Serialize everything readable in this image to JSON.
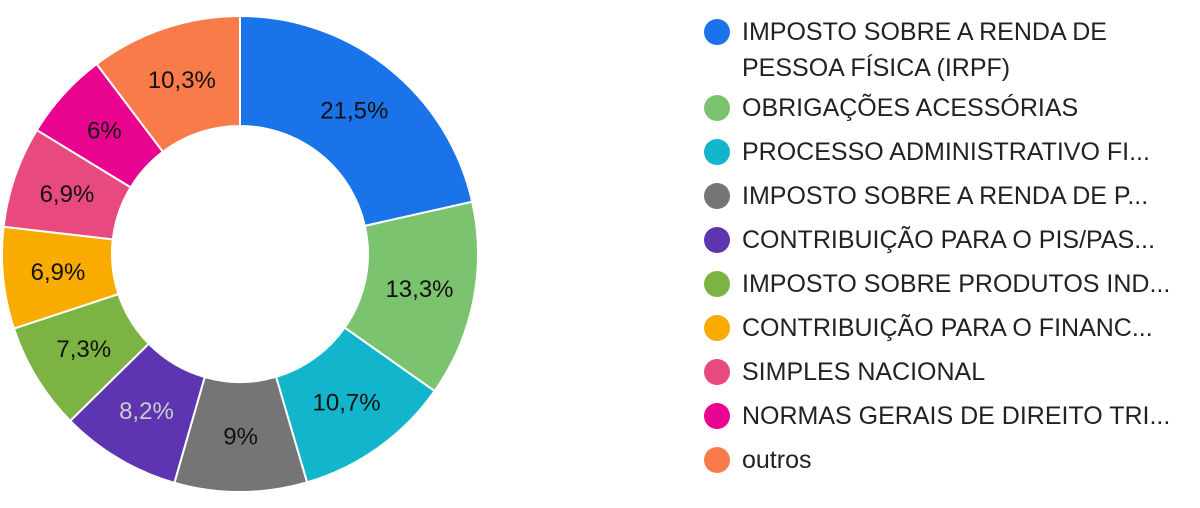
{
  "chart_data": {
    "type": "pie",
    "donut": true,
    "legend_position": "right",
    "slices": [
      {
        "label": "IMPOSTO SOBRE A RENDA DE PESSOA FÍSICA (IRPF)",
        "value": 21.5,
        "value_label": "21,5%",
        "color": "#1a73e8",
        "text_color": "#111111"
      },
      {
        "label": "OBRIGAÇÕES ACESSÓRIAS",
        "value": 13.3,
        "value_label": "13,3%",
        "color": "#7cc36f",
        "text_color": "#111111"
      },
      {
        "label": "PROCESSO ADMINISTRATIVO FI...",
        "value": 10.7,
        "value_label": "10,7%",
        "color": "#12b5cb",
        "text_color": "#111111"
      },
      {
        "label": "IMPOSTO SOBRE A RENDA DE P...",
        "value": 9,
        "value_label": "9%",
        "color": "#757575",
        "text_color": "#111111"
      },
      {
        "label": "CONTRIBUIÇÃO PARA O PIS/PAS...",
        "value": 8.2,
        "value_label": "8,2%",
        "color": "#5e35b1",
        "text_color": "#cccccc"
      },
      {
        "label": "IMPOSTO SOBRE PRODUTOS IND...",
        "value": 7.3,
        "value_label": "7,3%",
        "color": "#7cb342",
        "text_color": "#111111"
      },
      {
        "label": "CONTRIBUIÇÃO PARA O FINANC...",
        "value": 6.9,
        "value_label": "6,9%",
        "color": "#f9ab00",
        "text_color": "#111111"
      },
      {
        "label": "SIMPLES NACIONAL",
        "value": 6.9,
        "value_label": "6,9%",
        "color": "#e8497f",
        "text_color": "#111111"
      },
      {
        "label": "NORMAS GERAIS DE DIREITO TRI...",
        "value": 6,
        "value_label": "6%",
        "color": "#e8048f",
        "text_color": "#111111"
      },
      {
        "label": "outros",
        "value": 10.3,
        "value_label": "10,3%",
        "color": "#fa7b4a",
        "text_color": "#111111"
      }
    ]
  }
}
